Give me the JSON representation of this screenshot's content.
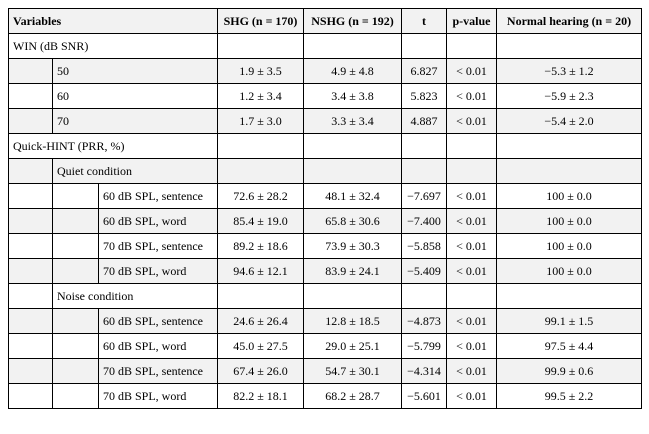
{
  "table": {
    "header": [
      "Variables",
      "SHG (n = 170)",
      "NSHG (n = 192)",
      "t",
      "p-value",
      "Normal hearing (n = 20)"
    ],
    "sections": [
      {
        "label": "WIN (dB SNR)",
        "rows": [
          {
            "label": "50",
            "cells": [
              "1.9 ± 3.5",
              "4.9 ± 4.8",
              "6.827",
              "< 0.01",
              "−5.3 ± 1.2"
            ]
          },
          {
            "label": "60",
            "cells": [
              "1.2 ± 3.4",
              "3.4 ± 3.8",
              "5.823",
              "< 0.01",
              "−5.9 ± 2.3"
            ]
          },
          {
            "label": "70",
            "cells": [
              "1.7 ± 3.0",
              "3.3 ± 3.4",
              "4.887",
              "< 0.01",
              "−5.4 ± 2.0"
            ]
          }
        ]
      },
      {
        "label": "Quick-HINT (PRR, %)",
        "groups": [
          {
            "label": "Quiet condition",
            "rows": [
              {
                "label": "60 dB SPL, sentence",
                "cells": [
                  "72.6 ± 28.2",
                  "48.1 ± 32.4",
                  "−7.697",
                  "< 0.01",
                  "100 ± 0.0"
                ]
              },
              {
                "label": "60 dB SPL, word",
                "cells": [
                  "85.4 ± 19.0",
                  "65.8 ± 30.6",
                  "−7.400",
                  "< 0.01",
                  "100 ± 0.0"
                ]
              },
              {
                "label": "70 dB SPL, sentence",
                "cells": [
                  "89.2 ± 18.6",
                  "73.9 ± 30.3",
                  "−5.858",
                  "< 0.01",
                  "100 ± 0.0"
                ]
              },
              {
                "label": "70 dB SPL, word",
                "cells": [
                  "94.6 ± 12.1",
                  "83.9 ± 24.1",
                  "−5.409",
                  "< 0.01",
                  "100 ± 0.0"
                ]
              }
            ]
          },
          {
            "label": "Noise condition",
            "rows": [
              {
                "label": "60 dB SPL, sentence",
                "cells": [
                  "24.6 ± 26.4",
                  "12.8 ± 18.5",
                  "−4.873",
                  "< 0.01",
                  "99.1 ± 1.5"
                ]
              },
              {
                "label": "60 dB SPL, word",
                "cells": [
                  "45.0 ± 27.5",
                  "29.0 ± 25.1",
                  "−5.799",
                  "< 0.01",
                  "97.5 ± 4.4"
                ]
              },
              {
                "label": "70 dB SPL, sentence",
                "cells": [
                  "67.4 ± 26.0",
                  "54.7 ± 30.1",
                  "−4.314",
                  "< 0.01",
                  "99.9 ± 0.6"
                ]
              },
              {
                "label": "70 dB SPL, word",
                "cells": [
                  "82.2 ± 18.1",
                  "68.2 ± 28.7",
                  "−5.601",
                  "< 0.01",
                  "99.5 ± 2.2"
                ]
              }
            ]
          }
        ]
      }
    ]
  }
}
